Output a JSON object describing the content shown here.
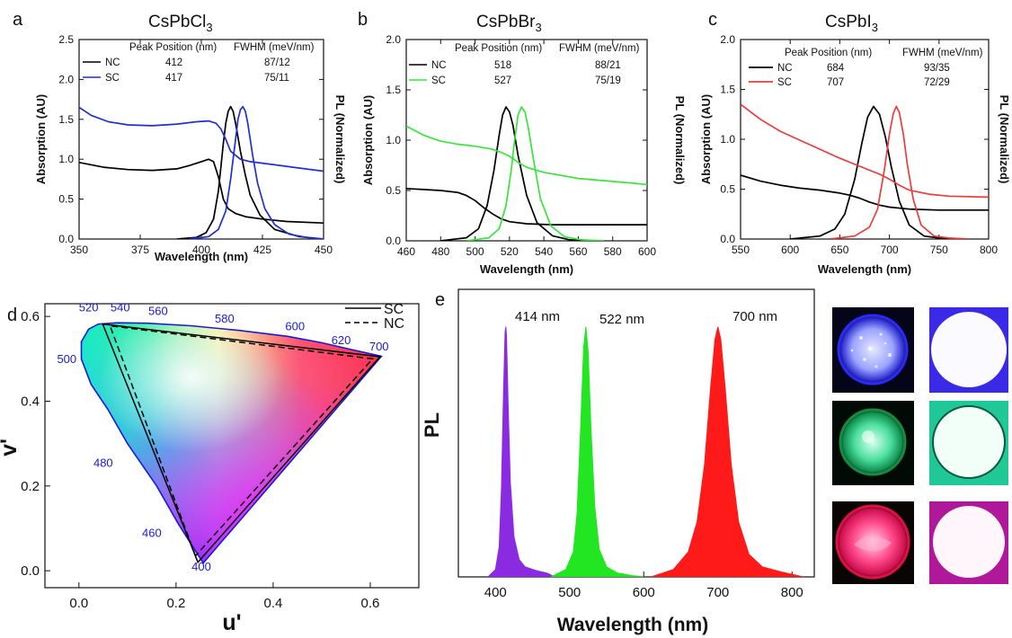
{
  "colors": {
    "nc": "#000000",
    "sc_cl": "#1f2fd6",
    "sc_br": "#34e83a",
    "sc_i": "#ee3b3b",
    "wavelength_label": "#1a1ad8",
    "pl_violet": "#8a2be2",
    "pl_green": "#22e622",
    "pl_red": "#ff1a1a"
  },
  "chart_data": [
    {
      "panel": "a",
      "type": "line",
      "title": "CsPbCl",
      "title_sub": "3",
      "xlabel": "Wavelength (nm)",
      "ylabel": "Absorption (AU)",
      "y2label": "PL (Normalized)",
      "xlim": [
        350,
        450
      ],
      "ylim": [
        0.0,
        2.5
      ],
      "xticks": [
        350,
        375,
        400,
        425,
        450
      ],
      "yticks": [
        "0.0",
        "0.5",
        "1.0",
        "1.5",
        "2.0",
        "2.5"
      ],
      "legend_header": {
        "col1": "Peak Position (nm)",
        "col2": "FWHM (meV/nm)"
      },
      "legend": [
        {
          "name": "NC",
          "peak": "412",
          "fwhm": "87/12",
          "color": "#000000"
        },
        {
          "name": "SC",
          "peak": "417",
          "fwhm": "75/11",
          "color": "#1f2fd6"
        }
      ],
      "series": [
        {
          "name": "NC absorption",
          "color": "#000000",
          "x": [
            350,
            360,
            370,
            380,
            390,
            395,
            400,
            403,
            405,
            407,
            409,
            411,
            414,
            418,
            425,
            435,
            450
          ],
          "y": [
            0.96,
            0.9,
            0.87,
            0.86,
            0.88,
            0.92,
            0.97,
            1.0,
            0.97,
            0.78,
            0.5,
            0.38,
            0.32,
            0.28,
            0.25,
            0.22,
            0.2
          ]
        },
        {
          "name": "NC PL",
          "color": "#000000",
          "x": [
            390,
            398,
            402,
            405,
            407,
            409,
            410,
            411,
            412,
            413,
            414,
            416,
            418,
            420,
            424,
            430,
            440,
            450
          ],
          "y": [
            0.0,
            0.02,
            0.08,
            0.25,
            0.6,
            1.2,
            1.45,
            1.6,
            1.66,
            1.6,
            1.45,
            1.1,
            0.8,
            0.55,
            0.3,
            0.12,
            0.03,
            0.0
          ]
        },
        {
          "name": "SC absorption",
          "color": "#1f2fd6",
          "x": [
            350,
            355,
            362,
            370,
            380,
            390,
            398,
            403,
            406,
            408,
            410,
            412,
            416,
            420,
            430,
            440,
            450
          ],
          "y": [
            1.65,
            1.55,
            1.47,
            1.43,
            1.42,
            1.44,
            1.47,
            1.48,
            1.45,
            1.38,
            1.25,
            1.1,
            1.0,
            0.97,
            0.93,
            0.89,
            0.85
          ]
        },
        {
          "name": "SC PL",
          "color": "#1f2fd6",
          "x": [
            395,
            403,
            407,
            410,
            412,
            414,
            415,
            416,
            417,
            418,
            419,
            421,
            423,
            426,
            430,
            436,
            445,
            450
          ],
          "y": [
            0.0,
            0.03,
            0.12,
            0.35,
            0.75,
            1.25,
            1.5,
            1.62,
            1.66,
            1.6,
            1.45,
            1.05,
            0.7,
            0.38,
            0.18,
            0.06,
            0.01,
            0.0
          ]
        }
      ]
    },
    {
      "panel": "b",
      "type": "line",
      "title": "CsPbBr",
      "title_sub": "3",
      "xlabel": "Wavelength (nm)",
      "ylabel": "Absorption (AU)",
      "y2label": "PL (Normalized)",
      "xlim": [
        460,
        600
      ],
      "ylim": [
        0.0,
        2.0
      ],
      "xticks": [
        460,
        480,
        500,
        520,
        540,
        560,
        580,
        600
      ],
      "yticks": [
        "0.0",
        "0.5",
        "1.0",
        "1.5",
        "2.0"
      ],
      "legend_header": {
        "col1": "Peak Position (nm)",
        "col2": "FWHM (meV/nm)"
      },
      "legend": [
        {
          "name": "NC",
          "peak": "518",
          "fwhm": "88/21",
          "color": "#000000"
        },
        {
          "name": "SC",
          "peak": "527",
          "fwhm": "75/19",
          "color": "#34e83a"
        }
      ],
      "series": [
        {
          "name": "NC absorption",
          "color": "#000000",
          "x": [
            460,
            470,
            480,
            490,
            495,
            500,
            505,
            510,
            515,
            520,
            530,
            545,
            560,
            580,
            600
          ],
          "y": [
            0.52,
            0.51,
            0.5,
            0.48,
            0.45,
            0.4,
            0.33,
            0.27,
            0.22,
            0.19,
            0.17,
            0.16,
            0.16,
            0.16,
            0.16
          ]
        },
        {
          "name": "NC PL",
          "color": "#000000",
          "x": [
            480,
            495,
            502,
            507,
            511,
            514,
            516,
            518,
            520,
            522,
            525,
            530,
            536,
            545,
            555,
            570
          ],
          "y": [
            0.0,
            0.03,
            0.12,
            0.35,
            0.7,
            1.05,
            1.25,
            1.33,
            1.28,
            1.15,
            0.85,
            0.45,
            0.18,
            0.05,
            0.01,
            0.0
          ]
        },
        {
          "name": "SC absorption",
          "color": "#34e83a",
          "x": [
            460,
            470,
            480,
            490,
            500,
            510,
            515,
            520,
            525,
            530,
            540,
            560,
            580,
            600
          ],
          "y": [
            1.14,
            1.05,
            0.99,
            0.96,
            0.94,
            0.91,
            0.88,
            0.84,
            0.78,
            0.73,
            0.68,
            0.62,
            0.59,
            0.56
          ]
        },
        {
          "name": "SC PL",
          "color": "#34e83a",
          "x": [
            495,
            508,
            514,
            518,
            521,
            523,
            525,
            527,
            529,
            531,
            534,
            538,
            544,
            552,
            562,
            575
          ],
          "y": [
            0.0,
            0.03,
            0.12,
            0.35,
            0.7,
            1.0,
            1.25,
            1.33,
            1.28,
            1.12,
            0.8,
            0.42,
            0.15,
            0.04,
            0.01,
            0.0
          ]
        }
      ]
    },
    {
      "panel": "c",
      "type": "line",
      "title": "CsPbI",
      "title_sub": "3",
      "xlabel": "Wavelength (nm)",
      "ylabel": "Absorption (AU)",
      "y2label": "PL (Normalized)",
      "xlim": [
        550,
        800
      ],
      "ylim": [
        0.0,
        2.0
      ],
      "xticks": [
        550,
        600,
        650,
        700,
        750,
        800
      ],
      "yticks": [
        "0.0",
        "0.5",
        "1.0",
        "1.5",
        "2.0"
      ],
      "legend_header": {
        "col1": "Peak Position (nm)",
        "col2": "FWHM (meV/nm)"
      },
      "legend": [
        {
          "name": "NC",
          "peak": "684",
          "fwhm": "93/35",
          "color": "#000000"
        },
        {
          "name": "SC",
          "peak": "707",
          "fwhm": "72/29",
          "color": "#ee3b3b"
        }
      ],
      "series": [
        {
          "name": "NC absorption",
          "color": "#000000",
          "x": [
            550,
            570,
            590,
            610,
            630,
            650,
            660,
            670,
            680,
            690,
            700,
            720,
            750,
            800
          ],
          "y": [
            0.64,
            0.58,
            0.54,
            0.51,
            0.49,
            0.46,
            0.44,
            0.41,
            0.37,
            0.34,
            0.32,
            0.3,
            0.29,
            0.29
          ]
        },
        {
          "name": "NC PL",
          "color": "#000000",
          "x": [
            600,
            630,
            645,
            655,
            665,
            672,
            678,
            684,
            690,
            696,
            702,
            710,
            720,
            735,
            750,
            770
          ],
          "y": [
            0.0,
            0.03,
            0.1,
            0.25,
            0.6,
            0.95,
            1.22,
            1.33,
            1.25,
            1.02,
            0.72,
            0.38,
            0.14,
            0.03,
            0.01,
            0.0
          ]
        },
        {
          "name": "SC absorption",
          "color": "#ee3b3b",
          "x": [
            550,
            570,
            590,
            610,
            630,
            650,
            670,
            690,
            700,
            710,
            720,
            740,
            760,
            800
          ],
          "y": [
            1.35,
            1.2,
            1.08,
            0.99,
            0.9,
            0.81,
            0.73,
            0.65,
            0.6,
            0.54,
            0.49,
            0.45,
            0.43,
            0.42
          ]
        },
        {
          "name": "SC PL",
          "color": "#ee3b3b",
          "x": [
            640,
            665,
            680,
            688,
            695,
            700,
            704,
            707,
            710,
            714,
            718,
            724,
            732,
            745,
            760,
            780
          ],
          "y": [
            0.0,
            0.03,
            0.12,
            0.3,
            0.7,
            1.05,
            1.26,
            1.33,
            1.27,
            1.05,
            0.75,
            0.4,
            0.14,
            0.03,
            0.01,
            0.0
          ]
        }
      ]
    },
    {
      "panel": "d",
      "type": "scatter",
      "title": "",
      "xlabel": "u'",
      "ylabel": "v'",
      "xlim": [
        -0.07,
        0.7
      ],
      "ylim": [
        -0.04,
        0.63
      ],
      "xticks": [
        "0.0",
        "0.2",
        "0.4",
        "0.6"
      ],
      "yticks": [
        "0.0",
        "0.2",
        "0.4",
        "0.6"
      ],
      "legend": [
        {
          "name": "SC",
          "style": "solid",
          "color": "#000000"
        },
        {
          "name": "NC",
          "style": "dashed",
          "color": "#000000"
        }
      ],
      "spectral_locus": {
        "u": [
          0.256,
          0.205,
          0.16,
          0.1,
          0.06,
          0.025,
          0.005,
          0.005,
          0.02,
          0.04,
          0.08,
          0.14,
          0.23,
          0.33,
          0.43,
          0.5,
          0.56,
          0.6,
          0.623
        ],
        "v": [
          0.018,
          0.11,
          0.2,
          0.3,
          0.38,
          0.44,
          0.5,
          0.54,
          0.57,
          0.582,
          0.585,
          0.584,
          0.578,
          0.567,
          0.553,
          0.538,
          0.522,
          0.512,
          0.506
        ]
      },
      "wavelength_labels": [
        {
          "text": "400",
          "u": 0.252,
          "v": 0.0
        },
        {
          "text": "460",
          "u": 0.15,
          "v": 0.08
        },
        {
          "text": "480",
          "u": 0.05,
          "v": 0.245
        },
        {
          "text": "500",
          "u": -0.025,
          "v": 0.49
        },
        {
          "text": "520",
          "u": 0.02,
          "v": 0.612
        },
        {
          "text": "540",
          "u": 0.085,
          "v": 0.612
        },
        {
          "text": "560",
          "u": 0.163,
          "v": 0.603
        },
        {
          "text": "580",
          "u": 0.3,
          "v": 0.585
        },
        {
          "text": "600",
          "u": 0.445,
          "v": 0.567
        },
        {
          "text": "620",
          "u": 0.54,
          "v": 0.535
        },
        {
          "text": "700",
          "u": 0.618,
          "v": 0.52
        }
      ],
      "series": [
        {
          "name": "SC",
          "u": [
            0.245,
            0.049,
            0.62
          ],
          "v": [
            0.02,
            0.582,
            0.505
          ]
        },
        {
          "name": "NC",
          "u": [
            0.24,
            0.064,
            0.605
          ],
          "v": [
            0.035,
            0.578,
            0.5
          ]
        }
      ]
    },
    {
      "panel": "e",
      "type": "area",
      "title": "",
      "xlabel": "Wavelength (nm)",
      "ylabel": "PL",
      "xlim": [
        350,
        830
      ],
      "ylim": [
        0,
        1.15
      ],
      "xticks": [
        400,
        500,
        600,
        700,
        800
      ],
      "annotations": [
        "414 nm",
        "522 nm",
        "700 nm"
      ],
      "series": [
        {
          "name": "414 nm",
          "color": "#8a2be2",
          "x": [
            390,
            400,
            405,
            408,
            411,
            413,
            414,
            415,
            417,
            420,
            425,
            432,
            440,
            455,
            470,
            480
          ],
          "y": [
            0.0,
            0.03,
            0.12,
            0.35,
            0.75,
            0.98,
            1.0,
            0.96,
            0.7,
            0.38,
            0.16,
            0.07,
            0.04,
            0.025,
            0.015,
            0.0
          ]
        },
        {
          "name": "522 nm",
          "color": "#22e622",
          "x": [
            475,
            495,
            505,
            510,
            515,
            519,
            522,
            525,
            529,
            534,
            540,
            550,
            565,
            585,
            600
          ],
          "y": [
            0.0,
            0.03,
            0.1,
            0.25,
            0.6,
            0.92,
            1.0,
            0.9,
            0.58,
            0.28,
            0.11,
            0.04,
            0.015,
            0.005,
            0.0
          ]
        },
        {
          "name": "700 nm",
          "color": "#ff1a1a",
          "x": [
            610,
            640,
            660,
            672,
            682,
            690,
            696,
            700,
            704,
            710,
            718,
            728,
            742,
            760,
            785,
            815
          ],
          "y": [
            0.0,
            0.03,
            0.1,
            0.22,
            0.45,
            0.75,
            0.95,
            1.0,
            0.95,
            0.75,
            0.45,
            0.22,
            0.09,
            0.04,
            0.02,
            0.0
          ]
        }
      ]
    }
  ],
  "labels": {
    "a": "a",
    "b": "b",
    "c": "c",
    "d": "d",
    "e": "e"
  },
  "photos": [
    {
      "color": "blue",
      "state": "off"
    },
    {
      "color": "blue",
      "state": "on"
    },
    {
      "color": "green",
      "state": "off"
    },
    {
      "color": "green",
      "state": "on"
    },
    {
      "color": "red",
      "state": "off"
    },
    {
      "color": "red",
      "state": "on"
    }
  ]
}
